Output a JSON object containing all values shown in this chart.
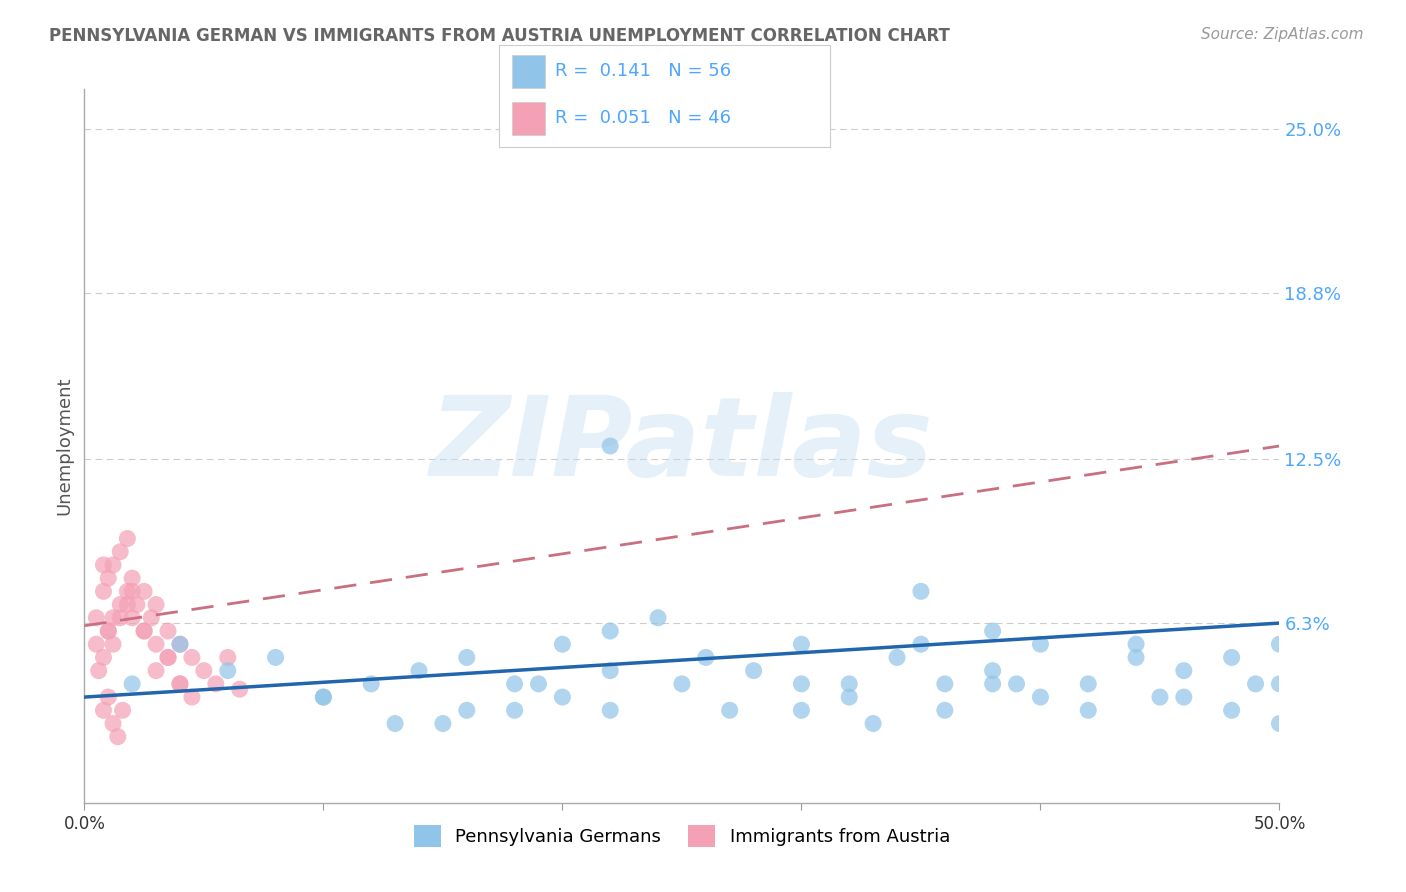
{
  "title": "PENNSYLVANIA GERMAN VS IMMIGRANTS FROM AUSTRIA UNEMPLOYMENT CORRELATION CHART",
  "source": "Source: ZipAtlas.com",
  "xlabel_blue": "Pennsylvania Germans",
  "xlabel_pink": "Immigrants from Austria",
  "ylabel": "Unemployment",
  "xlim": [
    0.0,
    0.5
  ],
  "ylim": [
    -0.005,
    0.265
  ],
  "ytick_labels_right": [
    "6.3%",
    "12.5%",
    "18.8%",
    "25.0%"
  ],
  "ytick_values_right": [
    0.063,
    0.125,
    0.188,
    0.25
  ],
  "grid_color": "#cccccc",
  "background_color": "#ffffff",
  "blue_color": "#90c4e8",
  "pink_color": "#f4a0b5",
  "blue_line_color": "#2166ac",
  "pink_line_color": "#c97080",
  "R_blue": 0.141,
  "N_blue": 56,
  "R_pink": 0.051,
  "N_pink": 46,
  "watermark": "ZIPatlas",
  "blue_scatter_x": [
    0.02,
    0.04,
    0.06,
    0.08,
    0.1,
    0.12,
    0.14,
    0.16,
    0.18,
    0.2,
    0.22,
    0.22,
    0.24,
    0.26,
    0.28,
    0.3,
    0.3,
    0.32,
    0.34,
    0.35,
    0.36,
    0.38,
    0.38,
    0.4,
    0.4,
    0.42,
    0.44,
    0.46,
    0.48,
    0.5,
    0.15,
    0.18,
    0.2,
    0.22,
    0.25,
    0.27,
    0.3,
    0.33,
    0.36,
    0.39,
    0.42,
    0.45,
    0.48,
    0.5,
    0.1,
    0.13,
    0.16,
    0.19,
    0.32,
    0.35,
    0.38,
    0.44,
    0.46,
    0.49,
    0.22,
    0.5
  ],
  "blue_scatter_y": [
    0.04,
    0.055,
    0.045,
    0.05,
    0.035,
    0.04,
    0.045,
    0.05,
    0.04,
    0.055,
    0.13,
    0.06,
    0.065,
    0.05,
    0.045,
    0.055,
    0.04,
    0.04,
    0.05,
    0.075,
    0.04,
    0.06,
    0.045,
    0.055,
    0.035,
    0.04,
    0.055,
    0.045,
    0.05,
    0.04,
    0.025,
    0.03,
    0.035,
    0.03,
    0.04,
    0.03,
    0.03,
    0.025,
    0.03,
    0.04,
    0.03,
    0.035,
    0.03,
    0.025,
    0.035,
    0.025,
    0.03,
    0.04,
    0.035,
    0.055,
    0.04,
    0.05,
    0.035,
    0.04,
    0.045,
    0.055
  ],
  "pink_scatter_x": [
    0.005,
    0.005,
    0.008,
    0.008,
    0.01,
    0.01,
    0.012,
    0.012,
    0.015,
    0.015,
    0.018,
    0.018,
    0.02,
    0.02,
    0.022,
    0.025,
    0.025,
    0.028,
    0.03,
    0.03,
    0.035,
    0.035,
    0.04,
    0.04,
    0.045,
    0.045,
    0.05,
    0.055,
    0.06,
    0.065,
    0.008,
    0.01,
    0.012,
    0.015,
    0.018,
    0.02,
    0.025,
    0.03,
    0.035,
    0.04,
    0.006,
    0.008,
    0.01,
    0.012,
    0.014,
    0.016
  ],
  "pink_scatter_y": [
    0.065,
    0.055,
    0.075,
    0.085,
    0.06,
    0.08,
    0.085,
    0.065,
    0.07,
    0.09,
    0.075,
    0.095,
    0.08,
    0.065,
    0.07,
    0.06,
    0.075,
    0.065,
    0.07,
    0.055,
    0.06,
    0.05,
    0.055,
    0.04,
    0.05,
    0.035,
    0.045,
    0.04,
    0.05,
    0.038,
    0.05,
    0.06,
    0.055,
    0.065,
    0.07,
    0.075,
    0.06,
    0.045,
    0.05,
    0.04,
    0.045,
    0.03,
    0.035,
    0.025,
    0.02,
    0.03
  ],
  "blue_trend_x": [
    0.0,
    0.5
  ],
  "blue_trend_y": [
    0.035,
    0.063
  ],
  "pink_trend_x": [
    0.0,
    0.5
  ],
  "pink_trend_y": [
    0.062,
    0.13
  ]
}
